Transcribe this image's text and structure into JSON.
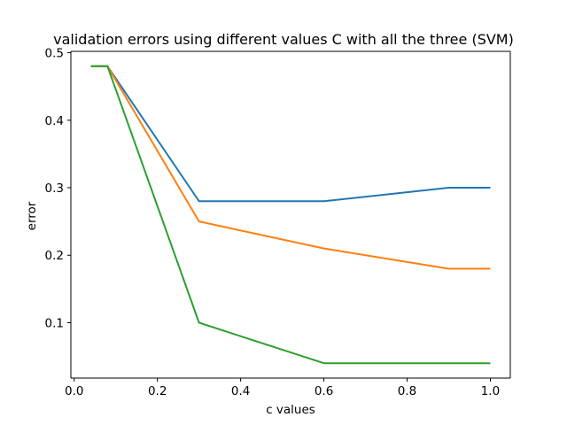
{
  "chart_data": {
    "type": "line",
    "title": "validation errors using different values C with all the three (SVM)",
    "xlabel": "c values",
    "ylabel": "error",
    "xlim": [
      -0.008,
      1.048
    ],
    "ylim": [
      0.018,
      0.502
    ],
    "xticks": [
      0.0,
      0.2,
      0.4,
      0.6,
      0.8,
      1.0
    ],
    "xtick_labels": [
      "0.0",
      "0.2",
      "0.4",
      "0.6",
      "0.8",
      "1.0"
    ],
    "yticks": [
      0.1,
      0.2,
      0.3,
      0.4,
      0.5
    ],
    "ytick_labels": [
      "0.1",
      "0.2",
      "0.3",
      "0.4",
      "0.5"
    ],
    "grid": false,
    "legend": false,
    "x": [
      0.04,
      0.08,
      0.3,
      0.6,
      0.9,
      1.0
    ],
    "series": [
      {
        "color": "#1f77b4",
        "values": [
          0.48,
          0.48,
          0.28,
          0.28,
          0.3,
          0.3
        ]
      },
      {
        "color": "#ff7f0e",
        "values": [
          0.48,
          0.48,
          0.25,
          0.21,
          0.18,
          0.18
        ]
      },
      {
        "color": "#2ca02c",
        "values": [
          0.48,
          0.48,
          0.1,
          0.04,
          0.04,
          0.04
        ]
      }
    ]
  }
}
